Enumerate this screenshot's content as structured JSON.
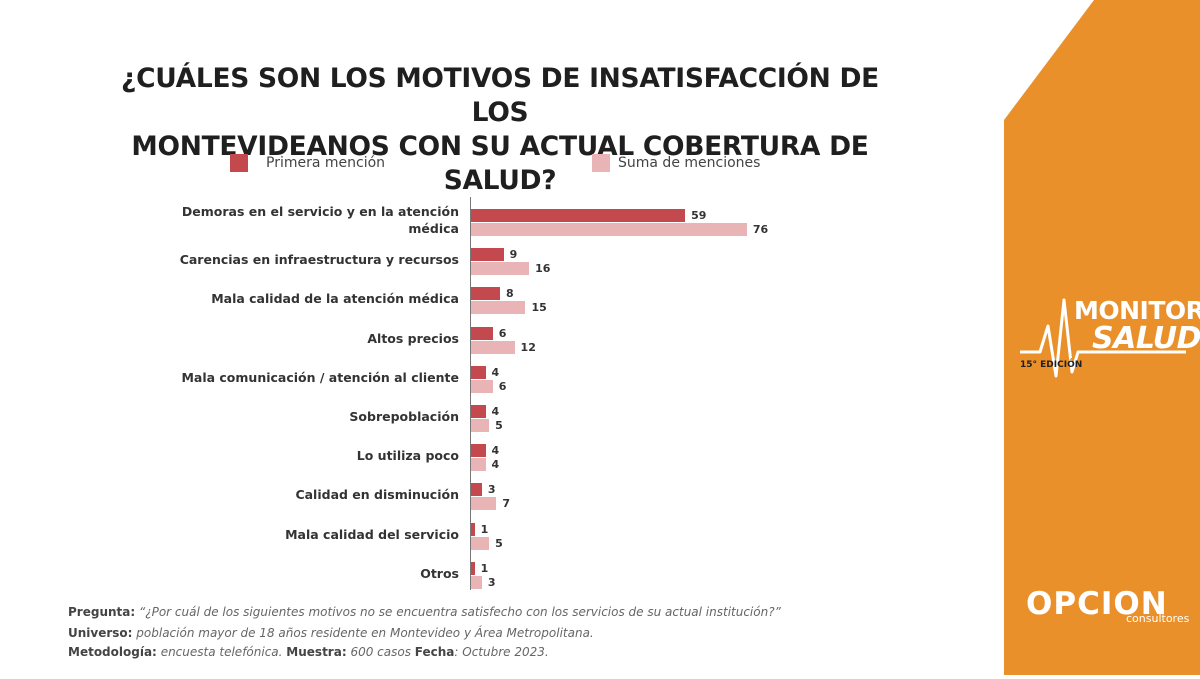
{
  "title_line1": "¿CUÁLES SON LOS MOTIVOS DE INSATISFACCIÓN DE LOS",
  "title_line2": "MONTEVIDEANOS CON SU ACTUAL COBERTURA DE SALUD?",
  "colors": {
    "primera": "#c4494f",
    "suma": "#e8b4b6",
    "orange": "#e9902a",
    "title": "#1f1f1f"
  },
  "chart_data": {
    "type": "bar",
    "orientation": "horizontal",
    "categories": [
      [
        "Demoras en el servicio y en la atención",
        "médica"
      ],
      [
        "Carencias en infraestructura y recursos"
      ],
      [
        "Mala calidad de la atención médica"
      ],
      [
        "Altos precios"
      ],
      [
        "Mala comunicación / atención al cliente"
      ],
      [
        "Sobrepoblación"
      ],
      [
        "Lo utiliza poco"
      ],
      [
        "Calidad en disminución"
      ],
      [
        "Mala calidad del servicio"
      ],
      [
        "Otros"
      ]
    ],
    "series": [
      {
        "name": "Primera mención",
        "values": [
          59,
          9,
          8,
          6,
          4,
          4,
          4,
          3,
          1,
          1
        ]
      },
      {
        "name": "Suma de menciones",
        "values": [
          76,
          16,
          15,
          12,
          6,
          5,
          4,
          7,
          5,
          3
        ]
      }
    ],
    "xlim": [
      0,
      100
    ],
    "legend": "top",
    "grid": false
  },
  "footer": {
    "pregunta_label": "Pregunta:",
    "pregunta_text": "“¿Por cuál de los siguientes motivos no se encuentra satisfecho con los servicios de su actual institución?”",
    "universo_label": "Universo:",
    "universo_text": "población mayor de 18 años residente en Montevideo y Área Metropolitana.",
    "metodologia_label": "Metodología:",
    "metodologia_text": "encuesta telefónica.",
    "muestra_label": "Muestra:",
    "muestra_text": "600 casos",
    "fecha_label": "Fecha",
    "fecha_text": ": Octubre 2023."
  },
  "brand": {
    "monitor": "MONITOR",
    "salud": "SALUD",
    "edicion": "15° EDICIÓN",
    "opcion": "OPCION",
    "consultores": "consultores"
  }
}
